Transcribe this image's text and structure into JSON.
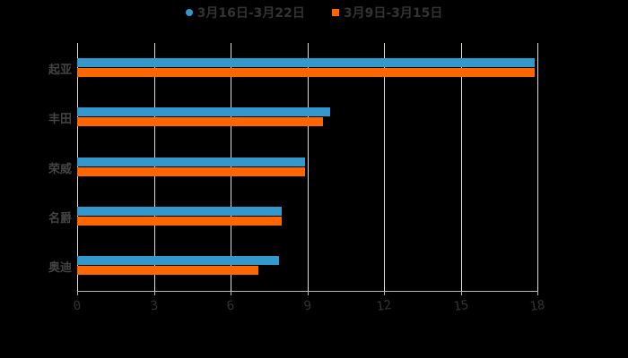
{
  "legend": [
    {
      "label": "3月16日-3月22日",
      "color": "#3399cc",
      "marker": "circle"
    },
    {
      "label": "3月9日-3月15日",
      "color": "#ff6600",
      "marker": "square"
    }
  ],
  "chart_data": {
    "type": "bar",
    "orientation": "horizontal",
    "categories": [
      "起亚",
      "丰田",
      "荣威",
      "名爵",
      "奥迪"
    ],
    "series": [
      {
        "name": "3月16日-3月22日",
        "color": "#3399cc",
        "values": [
          17.9,
          9.9,
          8.9,
          8.0,
          7.9
        ]
      },
      {
        "name": "3月9日-3月15日",
        "color": "#ff6600",
        "values": [
          17.9,
          9.6,
          8.9,
          8.0,
          7.1
        ]
      }
    ],
    "xlim": [
      0,
      18
    ],
    "xticks": [
      0,
      3,
      6,
      9,
      12,
      15,
      18
    ],
    "title": "",
    "xlabel": "",
    "ylabel": "",
    "grid": true,
    "legend_position": "top"
  }
}
